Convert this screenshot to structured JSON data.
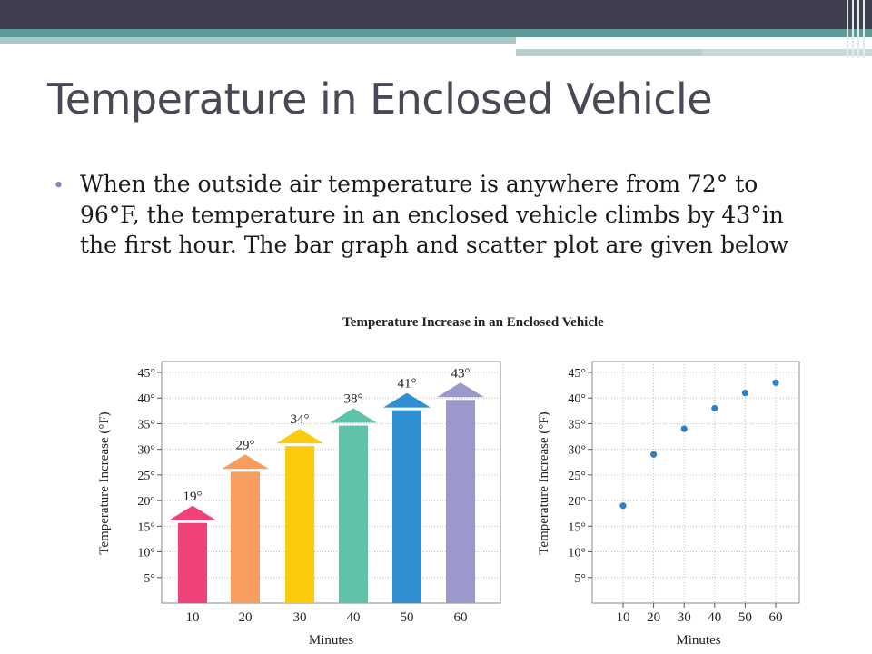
{
  "slide": {
    "title": "Temperature in Enclosed Vehicle",
    "bullet": "When the outside air temperature is anywhere from 72° to 96°F, the temperature in an enclosed vehicle climbs by 43°in the first hour. The bar graph and scatter plot are given below"
  },
  "figure_title": "Temperature Increase in an Enclosed Vehicle",
  "chart_data": [
    {
      "type": "bar",
      "title": "Temperature Increase in an Enclosed Vehicle",
      "xlabel": "Minutes",
      "ylabel": "Temperature Increase (°F)",
      "categories": [
        "10",
        "20",
        "30",
        "40",
        "50",
        "60"
      ],
      "values": [
        19,
        29,
        34,
        38,
        41,
        43
      ],
      "data_labels": [
        "19°",
        "29°",
        "34°",
        "38°",
        "41°",
        "43°"
      ],
      "ylim": [
        0,
        45
      ],
      "y_ticks": [
        "5°",
        "10°",
        "15°",
        "20°",
        "25°",
        "30°",
        "35°",
        "40°",
        "45°"
      ],
      "grid": true,
      "colors": [
        "#ee4278",
        "#f79e5e",
        "#fccb0b",
        "#5fc2a9",
        "#2f8fd1",
        "#9b98cb"
      ]
    },
    {
      "type": "scatter",
      "xlabel": "Minutes",
      "ylabel": "Temperature Increase (°F)",
      "x": [
        10,
        20,
        30,
        40,
        50,
        60
      ],
      "y": [
        19,
        29,
        34,
        38,
        41,
        43
      ],
      "x_ticks": [
        "10",
        "20",
        "30",
        "40",
        "50",
        "60"
      ],
      "y_ticks": [
        "5°",
        "10°",
        "15°",
        "20°",
        "25°",
        "30°",
        "35°",
        "40°",
        "45°"
      ],
      "ylim": [
        0,
        45
      ],
      "grid": true,
      "color": "#2f7fc6"
    }
  ]
}
